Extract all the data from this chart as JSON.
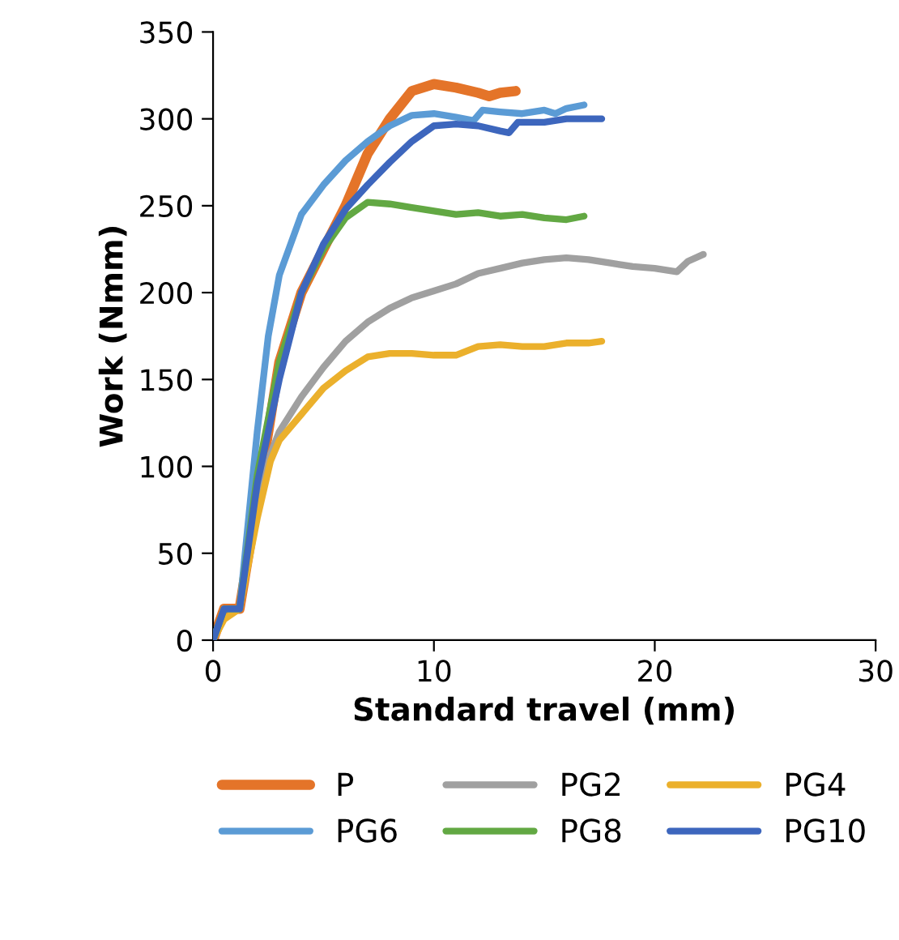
{
  "chart_data": {
    "type": "line",
    "xlabel": "Standard travel (mm)",
    "ylabel": "Work (Nmm)",
    "xlim": [
      0,
      30
    ],
    "xticks": [
      0,
      10,
      20,
      30
    ],
    "ylim": [
      0,
      350
    ],
    "yticks": [
      0,
      50,
      100,
      150,
      200,
      250,
      300,
      350
    ],
    "grid": false,
    "legend": "bottom",
    "marker": "none",
    "line_style": "solid",
    "series": [
      {
        "name": "P",
        "color": "#e47429",
        "x": [
          0,
          0.5,
          1.2,
          2,
          3,
          4,
          5,
          6,
          7,
          8,
          9,
          10,
          11,
          12,
          12.5,
          13,
          13.7
        ],
        "values": [
          0,
          18,
          18,
          80,
          160,
          200,
          225,
          250,
          280,
          300,
          316,
          320,
          318,
          315,
          313,
          315,
          316
        ]
      },
      {
        "name": "PG2",
        "color": "#a0a0a0",
        "x": [
          0,
          0.5,
          1.2,
          2,
          2.6,
          3,
          4,
          5,
          6,
          7,
          8,
          9,
          10,
          11,
          12,
          13,
          14,
          15,
          16,
          17,
          18,
          19,
          20,
          21,
          21.5,
          22.2
        ],
        "values": [
          0,
          18,
          18,
          75,
          107,
          120,
          140,
          157,
          172,
          183,
          191,
          197,
          201,
          205,
          211,
          214,
          217,
          219,
          220,
          219,
          217,
          215,
          214,
          212,
          218,
          222
        ]
      },
      {
        "name": "PG4",
        "color": "#ebb02c",
        "x": [
          0,
          0.5,
          1.2,
          2,
          2.6,
          3,
          4,
          5,
          6,
          7,
          8,
          9,
          10,
          11,
          12,
          13,
          14,
          15,
          16,
          17,
          17.6
        ],
        "values": [
          0,
          12,
          18,
          70,
          103,
          115,
          130,
          145,
          155,
          163,
          165,
          165,
          164,
          164,
          169,
          170,
          169,
          169,
          171,
          171,
          172
        ]
      },
      {
        "name": "PG6",
        "color": "#5b9bd5",
        "x": [
          0,
          0.5,
          1.2,
          2,
          2.5,
          3,
          4,
          5,
          6,
          7,
          8,
          9,
          10,
          11,
          11.8,
          12.2,
          13,
          14,
          15,
          15.5,
          16,
          16.8
        ],
        "values": [
          0,
          18,
          18,
          120,
          175,
          210,
          245,
          262,
          276,
          287,
          296,
          302,
          303,
          301,
          299,
          305,
          304,
          303,
          305,
          303,
          306,
          308
        ]
      },
      {
        "name": "PG8",
        "color": "#62a843",
        "x": [
          0,
          0.5,
          1.2,
          2,
          3,
          4,
          5,
          6,
          7,
          8,
          9,
          10,
          11,
          12,
          13,
          14,
          15,
          16,
          16.8
        ],
        "values": [
          0,
          18,
          18,
          95,
          160,
          200,
          225,
          243,
          252,
          251,
          249,
          247,
          245,
          246,
          244,
          245,
          243,
          242,
          244
        ]
      },
      {
        "name": "PG10",
        "color": "#3d66bd",
        "x": [
          0,
          0.5,
          1.2,
          2,
          3,
          4,
          5,
          6,
          7,
          8,
          9,
          10,
          11,
          12,
          13,
          13.4,
          13.8,
          15,
          16,
          17.6
        ],
        "values": [
          0,
          18,
          18,
          90,
          150,
          200,
          228,
          248,
          262,
          275,
          287,
          296,
          297,
          296,
          293,
          292,
          298,
          298,
          300,
          300
        ]
      }
    ]
  }
}
